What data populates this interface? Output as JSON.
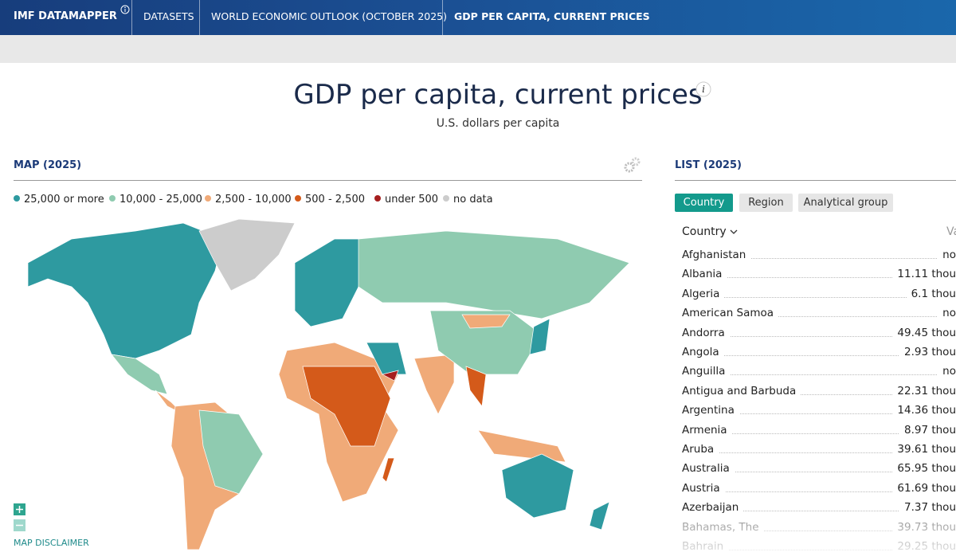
{
  "header": {
    "brand": "IMF DATAMAPPER",
    "nav": [
      "DATASETS",
      "WORLD ECONOMIC OUTLOOK (OCTOBER 2025)",
      "GDP PER CAPITA, CURRENT PRICES"
    ]
  },
  "title": "GDP per capita, current prices",
  "subtitle": "U.S. dollars per capita",
  "map": {
    "heading": "MAP (2025)",
    "legend": [
      {
        "label": "25,000 or more",
        "color": "#2e9aa0"
      },
      {
        "label": "10,000 - 25,000",
        "color": "#8fcbb0"
      },
      {
        "label": "2,500 - 10,000",
        "color": "#f0aa78"
      },
      {
        "label": "500 - 2,500",
        "color": "#d45a1a"
      },
      {
        "label": "under 500",
        "color": "#a51e1e"
      },
      {
        "label": "no data",
        "color": "#cccccc"
      }
    ],
    "disclaimer": "MAP DISCLAIMER"
  },
  "list": {
    "heading": "LIST (2025)",
    "tabs": [
      "Country",
      "Region",
      "Analytical group"
    ],
    "column_country": "Country",
    "column_value": "Va",
    "rows": [
      [
        "Afghanistan",
        "no"
      ],
      [
        "Albania",
        "11.11 thou"
      ],
      [
        "Algeria",
        "6.1 thou"
      ],
      [
        "American Samoa",
        "no"
      ],
      [
        "Andorra",
        "49.45 thou"
      ],
      [
        "Angola",
        "2.93 thou"
      ],
      [
        "Anguilla",
        "no"
      ],
      [
        "Antigua and Barbuda",
        "22.31 thou"
      ],
      [
        "Argentina",
        "14.36 thou"
      ],
      [
        "Armenia",
        "8.97 thou"
      ],
      [
        "Aruba",
        "39.61 thou"
      ],
      [
        "Australia",
        "65.95 thou"
      ],
      [
        "Austria",
        "61.69 thou"
      ],
      [
        "Azerbaijan",
        "7.37 thou"
      ],
      [
        "Bahamas, The",
        "39.73 thou"
      ],
      [
        "Bahrain",
        "29.25 thou"
      ]
    ]
  }
}
